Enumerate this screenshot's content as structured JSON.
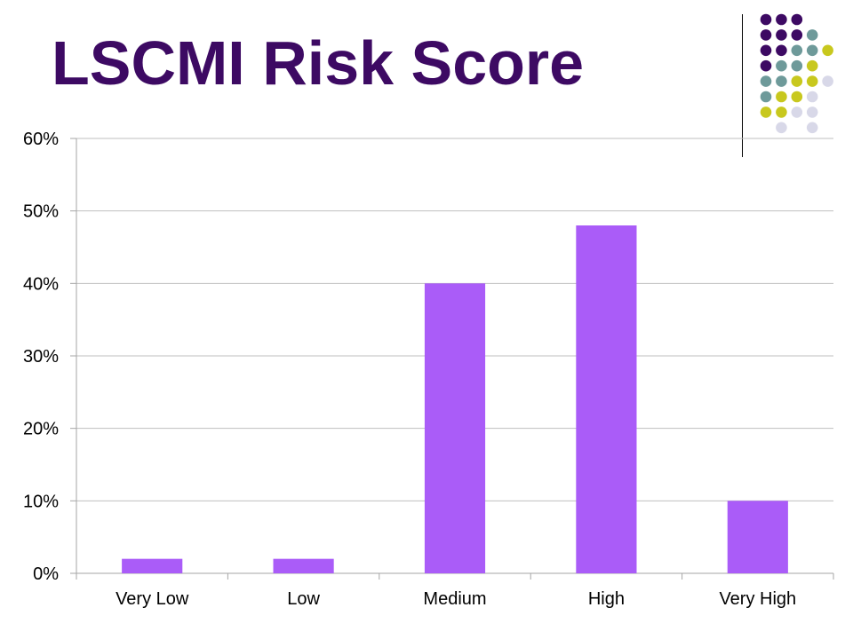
{
  "slide": {
    "title": "LSCMI Risk Score"
  },
  "colors": {
    "title": "#3d0a63",
    "bar": "#aa5cf8",
    "grid": "#bfbfbf",
    "axis": "#a6a6a6",
    "dot_purple": "#3d0a63",
    "dot_teal": "#6e9a9a",
    "dot_yellow": "#c8c81e",
    "dot_lavender": "#d8d8e8"
  },
  "decoration": {
    "dot_rows": [
      [
        "purple",
        "purple",
        "purple"
      ],
      [
        "purple",
        "purple",
        "purple",
        "teal"
      ],
      [
        "purple",
        "purple",
        "teal",
        "teal",
        "yellow"
      ],
      [
        "purple",
        "teal",
        "teal",
        "yellow"
      ],
      [
        "teal",
        "teal",
        "yellow",
        "yellow",
        "lavender"
      ],
      [
        "teal",
        "yellow",
        "yellow",
        "lavender"
      ],
      [
        "yellow",
        "yellow",
        "lavender",
        "lavender"
      ],
      [
        "lavender",
        "lavender"
      ]
    ]
  },
  "chart_data": {
    "type": "bar",
    "categories": [
      "Very Low",
      "Low",
      "Medium",
      "High",
      "Very High"
    ],
    "values": [
      2,
      2,
      40,
      48,
      10
    ],
    "ylim": [
      0,
      60
    ],
    "yticks": [
      0,
      10,
      20,
      30,
      40,
      50,
      60
    ],
    "ytick_labels": [
      "0%",
      "10%",
      "20%",
      "30%",
      "40%",
      "50%",
      "60%"
    ],
    "grid": true,
    "legend": "none"
  }
}
